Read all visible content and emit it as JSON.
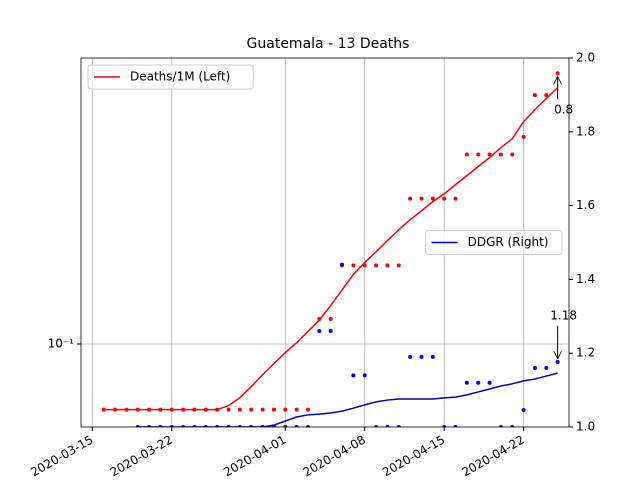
{
  "chart_data": {
    "type": "line",
    "title": "Guatemala - 13 Deaths",
    "x": [
      "2020-03-16",
      "2020-03-17",
      "2020-03-18",
      "2020-03-19",
      "2020-03-20",
      "2020-03-21",
      "2020-03-22",
      "2020-03-23",
      "2020-03-24",
      "2020-03-25",
      "2020-03-26",
      "2020-03-27",
      "2020-03-28",
      "2020-03-29",
      "2020-03-30",
      "2020-03-31",
      "2020-04-01",
      "2020-04-02",
      "2020-04-03",
      "2020-04-04",
      "2020-04-05",
      "2020-04-06",
      "2020-04-07",
      "2020-04-08",
      "2020-04-09",
      "2020-04-10",
      "2020-04-11",
      "2020-04-12",
      "2020-04-13",
      "2020-04-14",
      "2020-04-15",
      "2020-04-16",
      "2020-04-17",
      "2020-04-18",
      "2020-04-19",
      "2020-04-20",
      "2020-04-21",
      "2020-04-22",
      "2020-04-23",
      "2020-04-24",
      "2020-04-25"
    ],
    "series": [
      {
        "name": "Deaths/1M (Left)",
        "color": "#ff0000",
        "axis": "y",
        "style": "line",
        "legend_loc": "upper left",
        "values": [
          0.0606,
          0.0606,
          0.0606,
          0.0606,
          0.0606,
          0.0606,
          0.0606,
          0.0606,
          0.0606,
          0.0606,
          0.0606,
          0.0625,
          0.0664,
          0.0722,
          0.0791,
          0.0861,
          0.0936,
          0.101,
          0.11,
          0.12,
          0.134,
          0.151,
          0.17,
          0.186,
          0.202,
          0.22,
          0.239,
          0.258,
          0.276,
          0.296,
          0.314,
          0.337,
          0.361,
          0.387,
          0.414,
          0.447,
          0.478,
          0.545,
          0.597,
          0.65,
          0.706
        ]
      },
      {
        "name": "DDGR (Right)",
        "color": "#0000cc",
        "axis": "y2",
        "style": "line",
        "legend_loc": "center right",
        "values": [
          null,
          null,
          null,
          1.0,
          1.0,
          1.0,
          1.0,
          1.0,
          1.0,
          1.0,
          1.0,
          1.0,
          1.0,
          1.0,
          1.0,
          1.005,
          1.016,
          1.027,
          1.033,
          1.035,
          1.038,
          1.043,
          1.051,
          1.06,
          1.068,
          1.073,
          1.076,
          1.076,
          1.076,
          1.076,
          1.079,
          1.081,
          1.087,
          1.095,
          1.103,
          1.111,
          1.117,
          1.125,
          1.13,
          1.138,
          1.146
        ]
      },
      {
        "color": "#ff0000",
        "axis": "y",
        "style": "scatter",
        "values": [
          0.0606,
          0.0606,
          0.0606,
          0.0606,
          0.0606,
          0.0606,
          0.0606,
          0.0606,
          0.0606,
          0.0606,
          0.0606,
          0.0606,
          0.0606,
          0.0606,
          0.0606,
          0.0606,
          0.0606,
          0.0606,
          0.0606,
          0.121,
          0.121,
          0.182,
          0.182,
          0.182,
          0.182,
          0.182,
          0.182,
          0.303,
          0.303,
          0.303,
          0.303,
          0.303,
          0.424,
          0.424,
          0.424,
          0.424,
          0.424,
          0.485,
          0.667,
          0.667,
          0.788
        ]
      },
      {
        "color": "#0000ff",
        "axis": "y2",
        "style": "scatter",
        "values": [
          null,
          null,
          null,
          1.0,
          1.0,
          1.0,
          1.0,
          1.0,
          1.0,
          1.0,
          1.0,
          1.0,
          1.0,
          1.0,
          1.0,
          1.0,
          1.0,
          1.0,
          1.0,
          1.26,
          1.26,
          1.44,
          1.14,
          1.14,
          1.0,
          1.0,
          1.0,
          1.19,
          1.19,
          1.19,
          1.0,
          1.0,
          1.12,
          1.12,
          1.12,
          1.0,
          1.0,
          1.046,
          1.16,
          1.16,
          1.176
        ]
      }
    ],
    "xlim": [
      "2020-03-14",
      "2020-04-26"
    ],
    "xticks": [
      "2020-03-15",
      "2020-03-22",
      "2020-04-01",
      "2020-04-08",
      "2020-04-15",
      "2020-04-22"
    ],
    "ylim": [
      0.0531,
      0.885
    ],
    "yscale": "log",
    "yticks": [
      {
        "value": 0.1,
        "label": "10⁻¹"
      }
    ],
    "y2lim": [
      1.0,
      2.0
    ],
    "y2ticks": [
      {
        "value": 1,
        "label": "1.0"
      },
      1.2,
      1.4,
      1.6,
      1.8,
      {
        "value": 2,
        "label": "2.0"
      }
    ],
    "grid": true,
    "annotations": [
      {
        "text": "0.8",
        "series": 2,
        "index": 40
      },
      {
        "text": "1.18",
        "series": 3,
        "index": 40
      }
    ]
  }
}
